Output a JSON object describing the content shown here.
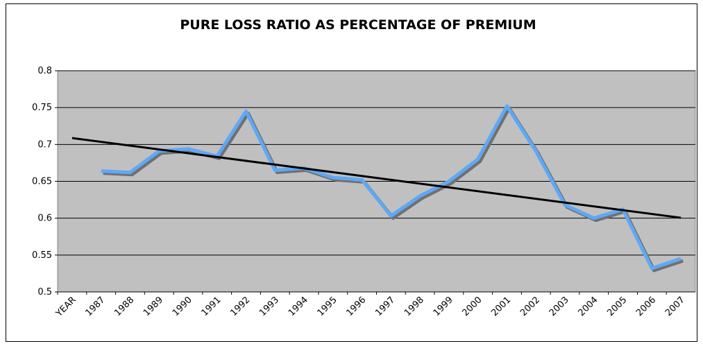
{
  "chart_data": {
    "type": "line",
    "title": "PURE LOSS RATIO AS PERCENTAGE OF PREMIUM",
    "categories": [
      "YEAR",
      "1987",
      "1988",
      "1989",
      "1990",
      "1991",
      "1992",
      "1993",
      "1994",
      "1995",
      "1996",
      "1997",
      "1998",
      "1999",
      "2000",
      "2001",
      "2002",
      "2003",
      "2004",
      "2005",
      "2006",
      "2007"
    ],
    "values": [
      null,
      0.664,
      0.662,
      0.691,
      0.694,
      0.684,
      0.745,
      0.665,
      0.668,
      0.655,
      0.652,
      0.603,
      0.63,
      0.65,
      0.68,
      0.752,
      0.691,
      0.618,
      0.6,
      0.612,
      0.532,
      0.545
    ],
    "color": "#5ea8f5",
    "shadow_color": "#707070",
    "trendline_color": "#000000",
    "trendline": "linear",
    "plot_background": "#c0c0c0",
    "ylim": [
      0.5,
      0.8
    ],
    "yticks": [
      0.5,
      0.55,
      0.6,
      0.65,
      0.7,
      0.75,
      0.8
    ],
    "grid": true
  }
}
